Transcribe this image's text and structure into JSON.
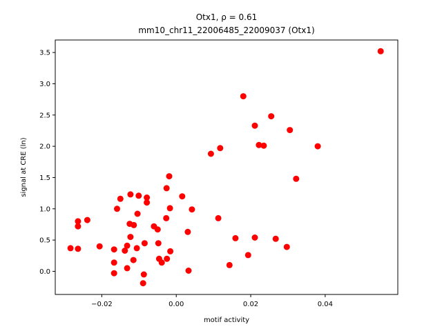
{
  "chart_data": {
    "type": "scatter",
    "title_line1": "Otx1, ρ = 0.61",
    "title_line2": "mm10_chr11_22006485_22009037 (Otx1)",
    "xlabel": "motif activity",
    "ylabel": "signal at CRE (ln)",
    "xlim": [
      -0.0325,
      0.0595
    ],
    "ylim": [
      -0.37,
      3.7
    ],
    "xticks": [
      {
        "value": -0.02,
        "label": "−0.02"
      },
      {
        "value": 0.0,
        "label": "0.00"
      },
      {
        "value": 0.02,
        "label": "0.02"
      },
      {
        "value": 0.04,
        "label": "0.04"
      }
    ],
    "yticks": [
      {
        "value": 0.0,
        "label": "0.0"
      },
      {
        "value": 0.5,
        "label": "0.5"
      },
      {
        "value": 1.0,
        "label": "1.0"
      },
      {
        "value": 1.5,
        "label": "1.5"
      },
      {
        "value": 2.0,
        "label": "2.0"
      },
      {
        "value": 2.5,
        "label": "2.5"
      },
      {
        "value": 3.0,
        "label": "3.0"
      },
      {
        "value": 3.5,
        "label": "3.5"
      }
    ],
    "marker_color": "#ff0000",
    "grid": false,
    "points": [
      {
        "x": 0.0549,
        "y": 3.52
      },
      {
        "x": 0.018,
        "y": 2.8
      },
      {
        "x": 0.0255,
        "y": 2.48
      },
      {
        "x": 0.0211,
        "y": 2.33
      },
      {
        "x": 0.0305,
        "y": 2.26
      },
      {
        "x": 0.0222,
        "y": 2.02
      },
      {
        "x": 0.0235,
        "y": 2.01
      },
      {
        "x": 0.038,
        "y": 2.0
      },
      {
        "x": 0.0118,
        "y": 1.97
      },
      {
        "x": 0.0093,
        "y": 1.88
      },
      {
        "x": 0.0322,
        "y": 1.48
      },
      {
        "x": 0.0113,
        "y": 0.85
      },
      {
        "x": 0.0159,
        "y": 0.53
      },
      {
        "x": 0.0211,
        "y": 0.54
      },
      {
        "x": 0.0267,
        "y": 0.52
      },
      {
        "x": 0.0297,
        "y": 0.39
      },
      {
        "x": 0.0193,
        "y": 0.26
      },
      {
        "x": 0.0143,
        "y": 0.1
      },
      {
        "x": 0.0033,
        "y": 0.01
      },
      {
        "x": 0.0031,
        "y": 0.63
      },
      {
        "x": 0.0042,
        "y": 0.99
      },
      {
        "x": 0.0016,
        "y": 1.2
      },
      {
        "x": -0.0019,
        "y": 1.52
      },
      {
        "x": -0.0026,
        "y": 1.33
      },
      {
        "x": -0.0017,
        "y": 1.01
      },
      {
        "x": -0.0027,
        "y": 0.85
      },
      {
        "x": -0.005,
        "y": 0.67
      },
      {
        "x": -0.006,
        "y": 0.72
      },
      {
        "x": -0.0048,
        "y": 0.45
      },
      {
        "x": -0.0016,
        "y": 0.32
      },
      {
        "x": -0.0025,
        "y": 0.2
      },
      {
        "x": -0.0046,
        "y": 0.2
      },
      {
        "x": -0.0039,
        "y": 0.14
      },
      {
        "x": -0.0079,
        "y": 1.18
      },
      {
        "x": -0.0079,
        "y": 1.1
      },
      {
        "x": -0.0101,
        "y": 1.21
      },
      {
        "x": -0.0123,
        "y": 1.23
      },
      {
        "x": -0.015,
        "y": 1.16
      },
      {
        "x": -0.0159,
        "y": 1.0
      },
      {
        "x": -0.0104,
        "y": 0.92
      },
      {
        "x": -0.0125,
        "y": 0.76
      },
      {
        "x": -0.0114,
        "y": 0.74
      },
      {
        "x": -0.0123,
        "y": 0.55
      },
      {
        "x": -0.0085,
        "y": 0.45
      },
      {
        "x": -0.0132,
        "y": 0.41
      },
      {
        "x": -0.0106,
        "y": 0.37
      },
      {
        "x": -0.0138,
        "y": 0.33
      },
      {
        "x": -0.0167,
        "y": 0.35
      },
      {
        "x": -0.0115,
        "y": 0.18
      },
      {
        "x": -0.0167,
        "y": 0.14
      },
      {
        "x": -0.0132,
        "y": 0.05
      },
      {
        "x": -0.0167,
        "y": -0.03
      },
      {
        "x": -0.0087,
        "y": -0.05
      },
      {
        "x": -0.0089,
        "y": -0.19
      },
      {
        "x": -0.0284,
        "y": 0.37
      },
      {
        "x": -0.0264,
        "y": 0.36
      },
      {
        "x": -0.0264,
        "y": 0.72
      },
      {
        "x": -0.0264,
        "y": 0.8
      },
      {
        "x": -0.0239,
        "y": 0.82
      },
      {
        "x": -0.0206,
        "y": 0.4
      }
    ]
  }
}
